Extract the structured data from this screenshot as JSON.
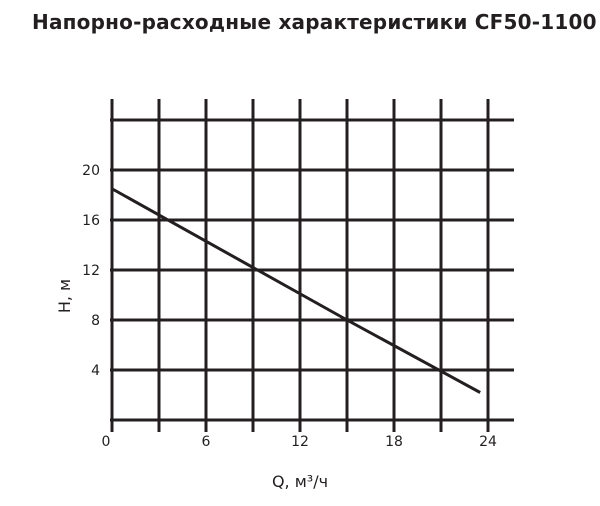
{
  "chart_data": {
    "type": "line",
    "title": "Напорно-расходные характеристики  CF50-1100",
    "xlabel": "Q, м³/ч",
    "ylabel": "H, м",
    "xlim": [
      0,
      25.5
    ],
    "ylim": [
      0,
      24
    ],
    "xticks": [
      0,
      6,
      12,
      18,
      24
    ],
    "yticks": [
      4,
      8,
      12,
      16,
      20
    ],
    "xgrid": [
      0,
      3,
      6,
      9,
      12,
      15,
      18,
      21,
      24
    ],
    "ygrid": [
      0,
      4,
      8,
      12,
      16,
      20,
      24
    ],
    "grid": true,
    "series": [
      {
        "x": [
          0,
          15,
          23.5
        ],
        "y": [
          18.5,
          8,
          2.2
        ],
        "color": "#231f20"
      }
    ]
  }
}
